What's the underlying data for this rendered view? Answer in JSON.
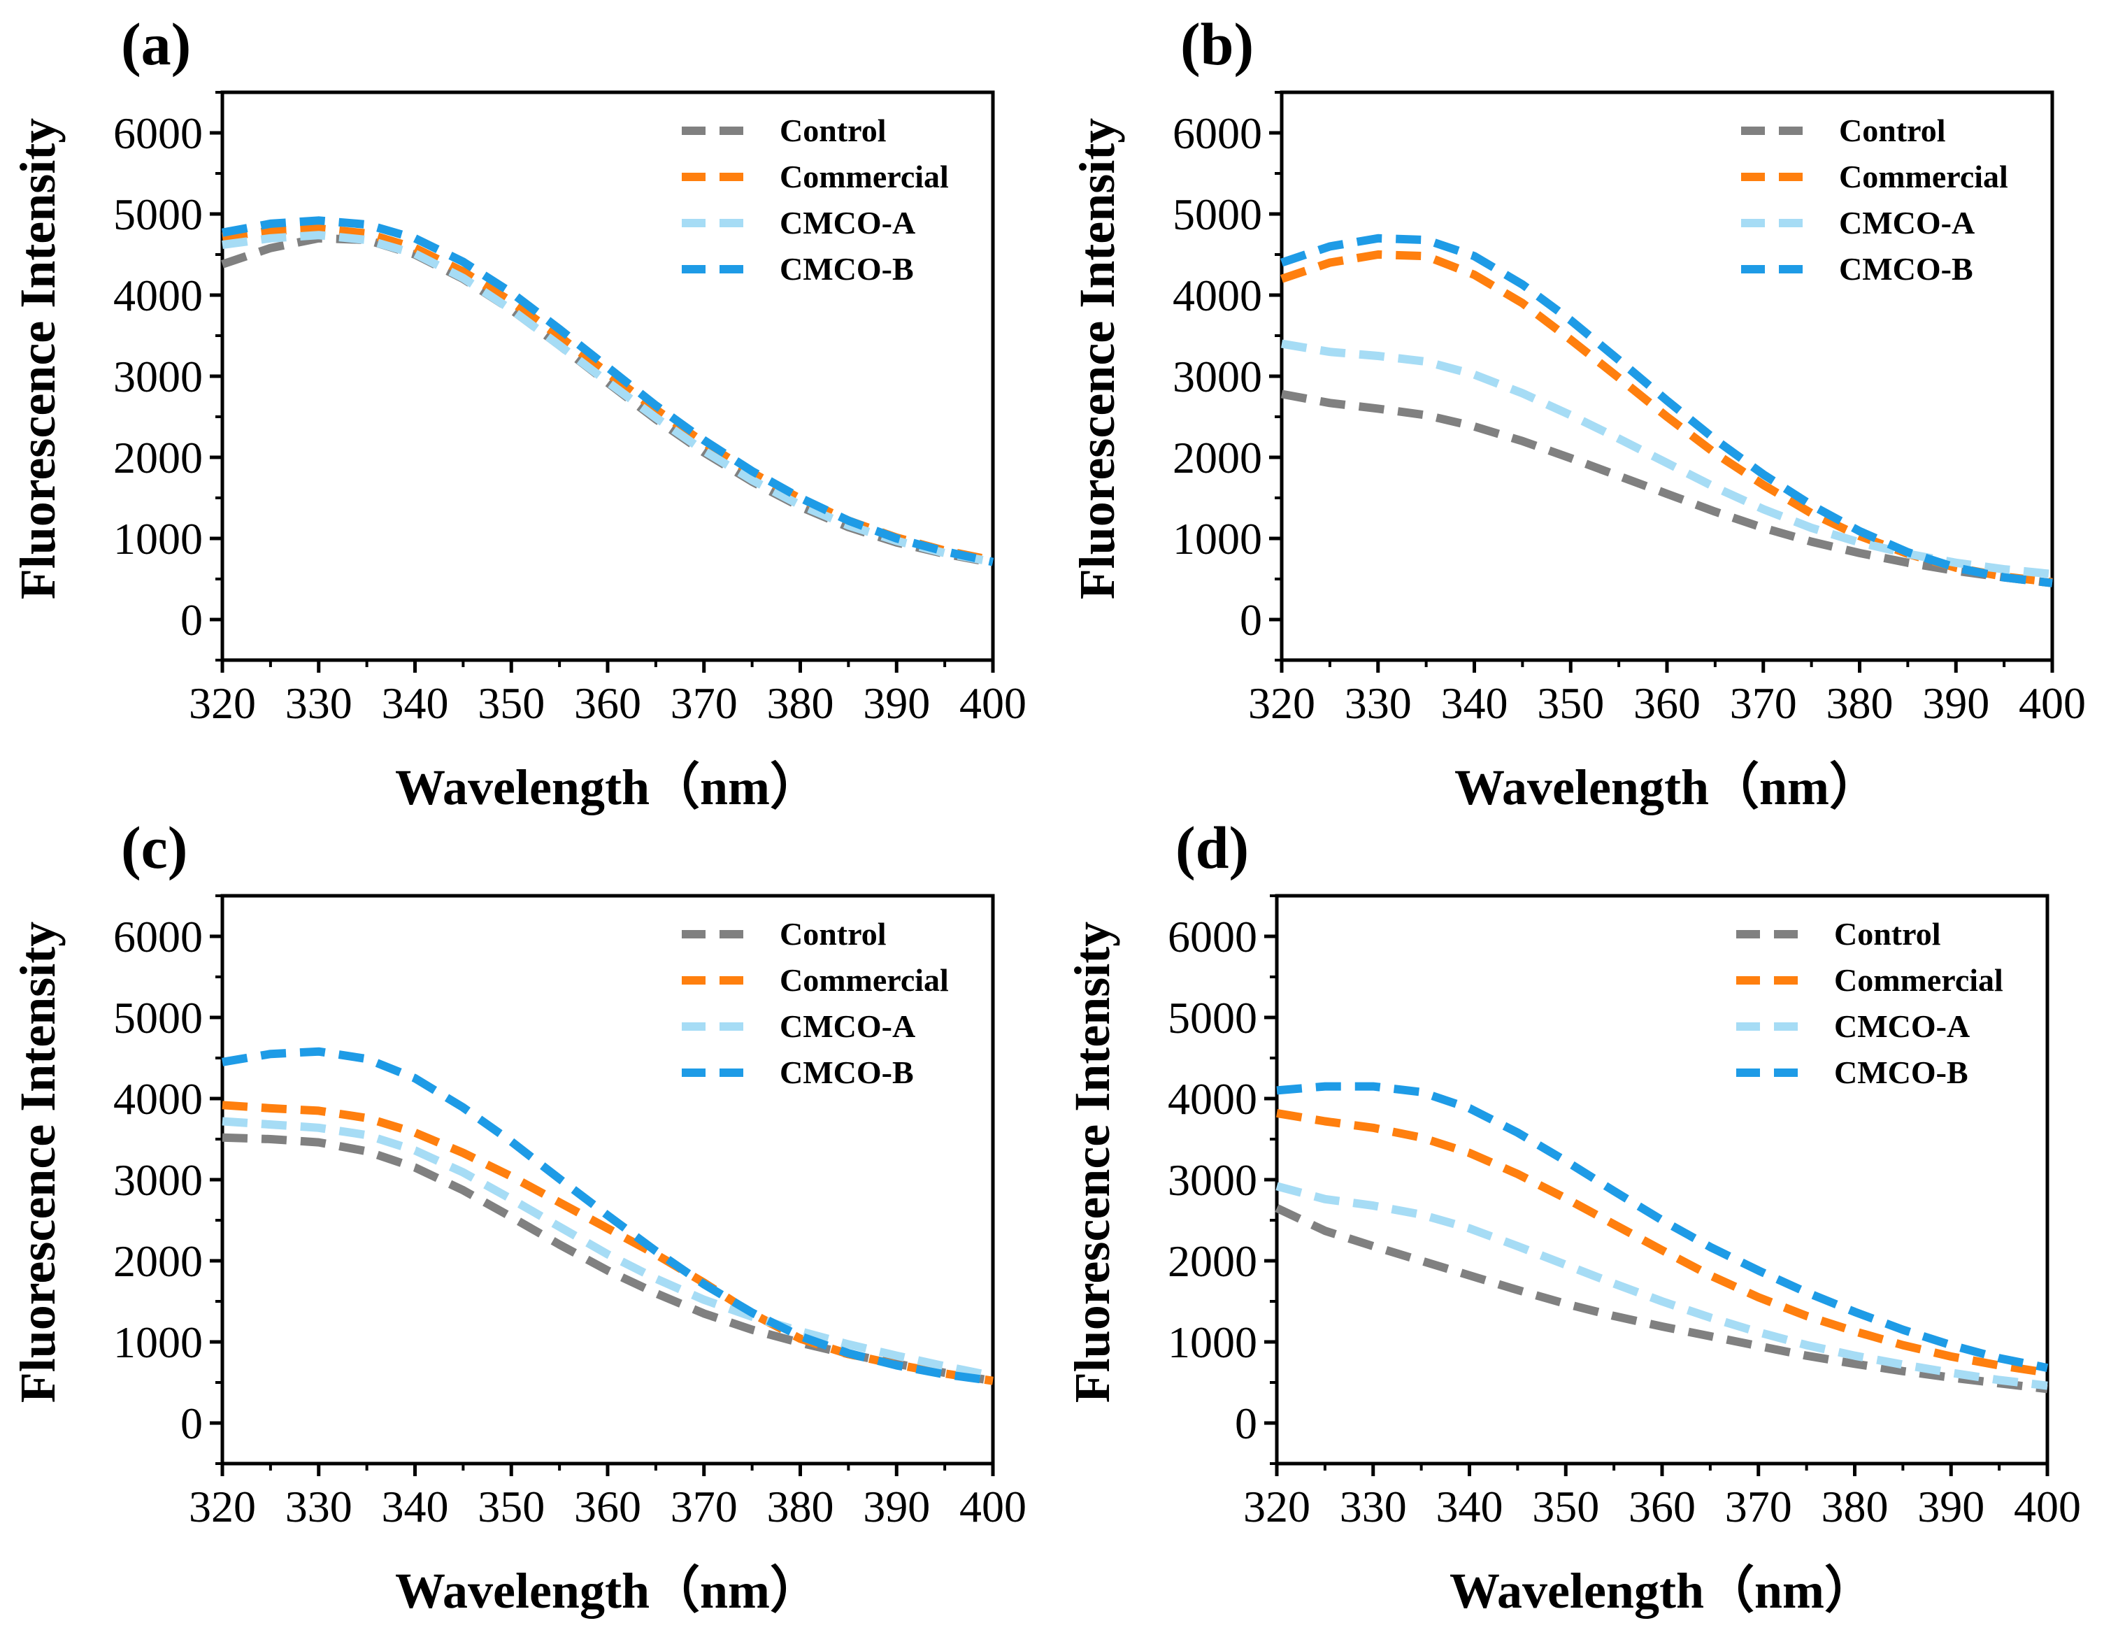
{
  "chart_data": [
    {
      "type": "line",
      "panel_label": "(a)",
      "xlabel": "Wavelength（nm）",
      "ylabel": "Fluorescence Intensity",
      "xlim": [
        320,
        400
      ],
      "ylim": [
        -500,
        6500
      ],
      "xticks": [
        320,
        330,
        340,
        350,
        360,
        370,
        380,
        390,
        400
      ],
      "yticks": [
        0,
        1000,
        2000,
        3000,
        4000,
        5000,
        6000
      ],
      "legend_position": "top-right",
      "x": [
        320,
        325,
        330,
        335,
        340,
        345,
        350,
        355,
        360,
        365,
        370,
        375,
        380,
        385,
        390,
        395,
        400
      ],
      "series": [
        {
          "name": "Control",
          "color": "#808080",
          "values": [
            4380,
            4580,
            4700,
            4680,
            4500,
            4200,
            3820,
            3380,
            2920,
            2470,
            2060,
            1700,
            1390,
            1140,
            950,
            810,
            700
          ]
        },
        {
          "name": "Commercial",
          "color": "#ff7f0e",
          "values": [
            4720,
            4790,
            4820,
            4760,
            4580,
            4290,
            3920,
            3490,
            3040,
            2590,
            2180,
            1810,
            1490,
            1220,
            1010,
            850,
            730
          ]
        },
        {
          "name": "CMCO-A",
          "color": "#a6dcf5",
          "values": [
            4620,
            4700,
            4740,
            4680,
            4510,
            4210,
            3820,
            3380,
            2930,
            2490,
            2080,
            1720,
            1410,
            1160,
            970,
            820,
            710
          ]
        },
        {
          "name": "CMCO-B",
          "color": "#1e9be6",
          "values": [
            4770,
            4880,
            4920,
            4870,
            4700,
            4410,
            4030,
            3580,
            3110,
            2640,
            2210,
            1830,
            1500,
            1220,
            1000,
            840,
            710
          ]
        }
      ]
    },
    {
      "type": "line",
      "panel_label": "(b)",
      "xlabel": "Wavelength（nm）",
      "ylabel": "Fluorescence Intensity",
      "xlim": [
        320,
        400
      ],
      "ylim": [
        -500,
        6500
      ],
      "xticks": [
        320,
        330,
        340,
        350,
        360,
        370,
        380,
        390,
        400
      ],
      "yticks": [
        0,
        1000,
        2000,
        3000,
        4000,
        5000,
        6000
      ],
      "legend_position": "top-right",
      "x": [
        320,
        325,
        330,
        335,
        340,
        345,
        350,
        355,
        360,
        365,
        370,
        375,
        380,
        385,
        390,
        395,
        400
      ],
      "series": [
        {
          "name": "Control",
          "color": "#808080",
          "values": [
            2780,
            2670,
            2600,
            2520,
            2380,
            2200,
            1990,
            1770,
            1550,
            1330,
            1130,
            960,
            820,
            700,
            600,
            520,
            450
          ]
        },
        {
          "name": "Commercial",
          "color": "#ff7f0e",
          "values": [
            4200,
            4400,
            4500,
            4480,
            4250,
            3900,
            3450,
            2980,
            2500,
            2050,
            1660,
            1310,
            1030,
            810,
            640,
            530,
            460
          ]
        },
        {
          "name": "CMCO-A",
          "color": "#a6dcf5",
          "values": [
            3400,
            3300,
            3250,
            3180,
            3020,
            2790,
            2520,
            2230,
            1930,
            1630,
            1360,
            1130,
            950,
            810,
            700,
            620,
            560
          ]
        },
        {
          "name": "CMCO-B",
          "color": "#1e9be6",
          "values": [
            4400,
            4600,
            4700,
            4680,
            4480,
            4130,
            3690,
            3200,
            2700,
            2220,
            1790,
            1410,
            1090,
            830,
            640,
            520,
            450
          ]
        }
      ]
    },
    {
      "type": "line",
      "panel_label": "(c)",
      "xlabel": "Wavelength（nm）",
      "ylabel": "Fluorescence Intensity",
      "xlim": [
        320,
        400
      ],
      "ylim": [
        -500,
        6500
      ],
      "xticks": [
        320,
        330,
        340,
        350,
        360,
        370,
        380,
        390,
        400
      ],
      "yticks": [
        0,
        1000,
        2000,
        3000,
        4000,
        5000,
        6000
      ],
      "legend_position": "top-right",
      "x": [
        320,
        325,
        330,
        335,
        340,
        345,
        350,
        355,
        360,
        365,
        370,
        375,
        380,
        385,
        390,
        395,
        400
      ],
      "series": [
        {
          "name": "Control",
          "color": "#808080",
          "values": [
            3520,
            3500,
            3460,
            3350,
            3150,
            2870,
            2540,
            2200,
            1880,
            1600,
            1350,
            1150,
            990,
            850,
            730,
            620,
            520
          ]
        },
        {
          "name": "Commercial",
          "color": "#ff7f0e",
          "values": [
            3920,
            3880,
            3850,
            3760,
            3580,
            3330,
            3040,
            2720,
            2400,
            2080,
            1730,
            1350,
            1040,
            850,
            720,
            610,
            520
          ]
        },
        {
          "name": "CMCO-A",
          "color": "#a6dcf5",
          "values": [
            3720,
            3680,
            3640,
            3550,
            3360,
            3090,
            2760,
            2420,
            2080,
            1780,
            1520,
            1310,
            1130,
            970,
            830,
            700,
            580
          ]
        },
        {
          "name": "CMCO-B",
          "color": "#1e9be6",
          "values": [
            4450,
            4550,
            4580,
            4490,
            4250,
            3890,
            3470,
            3010,
            2560,
            2120,
            1710,
            1360,
            1070,
            860,
            710,
            600,
            520
          ]
        }
      ]
    },
    {
      "type": "line",
      "panel_label": "(d)",
      "xlabel": "Wavelength（nm）",
      "ylabel": "Fluorescence Intensity",
      "xlim": [
        320,
        400
      ],
      "ylim": [
        -500,
        6500
      ],
      "xticks": [
        320,
        330,
        340,
        350,
        360,
        370,
        380,
        390,
        400
      ],
      "yticks": [
        0,
        1000,
        2000,
        3000,
        4000,
        5000,
        6000
      ],
      "legend_position": "top-right",
      "x": [
        320,
        325,
        330,
        335,
        340,
        345,
        350,
        355,
        360,
        365,
        370,
        375,
        380,
        385,
        390,
        395,
        400
      ],
      "series": [
        {
          "name": "Control",
          "color": "#808080",
          "values": [
            2650,
            2370,
            2180,
            2000,
            1820,
            1640,
            1470,
            1320,
            1190,
            1070,
            950,
            830,
            730,
            640,
            560,
            490,
            420
          ]
        },
        {
          "name": "Commercial",
          "color": "#ff7f0e",
          "values": [
            3820,
            3720,
            3640,
            3520,
            3330,
            3070,
            2770,
            2450,
            2130,
            1820,
            1550,
            1320,
            1130,
            960,
            820,
            710,
            620
          ]
        },
        {
          "name": "CMCO-A",
          "color": "#a6dcf5",
          "values": [
            2920,
            2760,
            2680,
            2570,
            2400,
            2180,
            1950,
            1720,
            1500,
            1300,
            1120,
            960,
            830,
            720,
            620,
            530,
            460
          ]
        },
        {
          "name": "CMCO-B",
          "color": "#1e9be6",
          "values": [
            4100,
            4150,
            4150,
            4080,
            3880,
            3580,
            3230,
            2860,
            2500,
            2170,
            1880,
            1610,
            1370,
            1150,
            960,
            800,
            680
          ]
        }
      ]
    }
  ]
}
